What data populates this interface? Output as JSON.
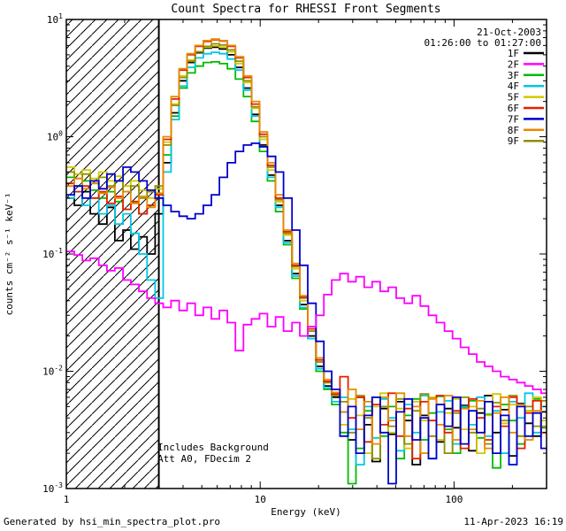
{
  "title": "Count Spectra for RHESSI Front Segments",
  "header": {
    "date": "21-Oct-2003",
    "time_range": "01:26:00 to 01:27:00"
  },
  "annotations": {
    "background": "Includes Background",
    "att": "Att A0, FDecim 2"
  },
  "footer": {
    "left": "Generated by hsi_min_spectra_plot.pro",
    "right": "11-Apr-2023 16:19"
  },
  "chart_data": {
    "type": "line",
    "title": "Count Spectra for RHESSI Front Segments",
    "xlabel": "Energy (keV)",
    "ylabel": "counts cm⁻² s⁻¹ keV⁻¹",
    "xscale": "log",
    "yscale": "log",
    "xlim": [
      1,
      300
    ],
    "ylim": [
      0.001,
      10
    ],
    "x_ticks": [
      1,
      10,
      100
    ],
    "x_minor_ticks": [
      2,
      3,
      4,
      5,
      6,
      7,
      8,
      9,
      20,
      30,
      40,
      50,
      60,
      70,
      80,
      90,
      200
    ],
    "y_ticks": [
      0.001,
      0.01,
      0.1,
      1,
      10
    ],
    "grid": false,
    "step": true,
    "legend_position": "top-right",
    "excluded_region": {
      "xmin": 1,
      "xmax": 3,
      "style": "hatched"
    },
    "draw_order": [
      "1F",
      "3F",
      "4F",
      "5F",
      "9F",
      "6F",
      "8F",
      "7F",
      "2F"
    ],
    "x": [
      1.0,
      1.1,
      1.21,
      1.33,
      1.47,
      1.62,
      1.78,
      1.96,
      2.15,
      2.37,
      2.61,
      2.87,
      3.16,
      3.47,
      3.82,
      4.2,
      4.62,
      5.09,
      5.6,
      6.16,
      6.77,
      7.45,
      8.2,
      9.02,
      9.93,
      10.9,
      12.0,
      13.2,
      14.6,
      16.0,
      17.6,
      19.4,
      21.3,
      23.4,
      25.8,
      28.4,
      31.2,
      34.4,
      37.8,
      41.6,
      45.8,
      50.3,
      55.4,
      60.9,
      67.0,
      73.8,
      81.1,
      89.3,
      98.2,
      108,
      119,
      131,
      144,
      158,
      174,
      192,
      211,
      232,
      255,
      281
    ],
    "series": [
      {
        "name": "1F",
        "color": "#000000",
        "values": [
          0.3,
          0.26,
          0.34,
          0.22,
          0.18,
          0.25,
          0.13,
          0.16,
          0.11,
          0.14,
          0.1,
          0.22,
          0.6,
          1.6,
          3.0,
          4.3,
          5.2,
          5.7,
          5.8,
          5.6,
          5.0,
          3.9,
          2.6,
          1.55,
          0.85,
          0.47,
          0.26,
          0.13,
          0.068,
          0.037,
          0.02,
          0.011,
          0.0075,
          0.006,
          0.0045,
          0.0026,
          0.006,
          0.0035,
          0.0017,
          0.0048,
          0.0029,
          0.0055,
          0.0038,
          0.0016,
          0.0042,
          0.006,
          0.0025,
          0.0048,
          0.0033,
          0.0051,
          0.0021,
          0.0044,
          0.0062,
          0.003,
          0.0047,
          0.0019,
          0.0053,
          0.0036,
          0.0028,
          0.0045
        ]
      },
      {
        "name": "2F",
        "color": "#ff00ff",
        "values": [
          0.105,
          0.098,
          0.088,
          0.092,
          0.08,
          0.072,
          0.076,
          0.06,
          0.055,
          0.048,
          0.042,
          0.038,
          0.035,
          0.04,
          0.033,
          0.038,
          0.03,
          0.035,
          0.028,
          0.033,
          0.026,
          0.015,
          0.025,
          0.028,
          0.031,
          0.024,
          0.029,
          0.022,
          0.026,
          0.02,
          0.024,
          0.03,
          0.045,
          0.06,
          0.068,
          0.058,
          0.064,
          0.052,
          0.058,
          0.048,
          0.052,
          0.042,
          0.038,
          0.044,
          0.036,
          0.03,
          0.026,
          0.022,
          0.019,
          0.016,
          0.014,
          0.012,
          0.011,
          0.01,
          0.009,
          0.0085,
          0.008,
          0.0075,
          0.007,
          0.0065
        ]
      },
      {
        "name": "3F",
        "color": "#00bb00",
        "values": [
          0.45,
          0.38,
          0.42,
          0.35,
          0.3,
          0.34,
          0.28,
          0.24,
          0.28,
          0.22,
          0.26,
          0.3,
          0.7,
          1.5,
          2.6,
          3.5,
          4.0,
          4.3,
          4.35,
          4.2,
          3.8,
          3.1,
          2.2,
          1.35,
          0.75,
          0.42,
          0.23,
          0.12,
          0.062,
          0.034,
          0.019,
          0.01,
          0.007,
          0.0052,
          0.003,
          0.0011,
          0.0022,
          0.0046,
          0.006,
          0.0028,
          0.005,
          0.0018,
          0.0042,
          0.0058,
          0.0026,
          0.0044,
          0.0061,
          0.0032,
          0.002,
          0.0049,
          0.0056,
          0.0027,
          0.0043,
          0.0015,
          0.0052,
          0.0038,
          0.0024,
          0.0046,
          0.0058,
          0.0033
        ]
      },
      {
        "name": "4F",
        "color": "#00c8e6",
        "values": [
          0.3,
          0.34,
          0.26,
          0.3,
          0.22,
          0.26,
          0.18,
          0.22,
          0.15,
          0.1,
          0.06,
          0.042,
          0.5,
          1.4,
          2.7,
          3.9,
          4.7,
          5.1,
          5.25,
          5.1,
          4.6,
          3.7,
          2.5,
          1.5,
          0.82,
          0.45,
          0.25,
          0.125,
          0.065,
          0.035,
          0.019,
          0.0105,
          0.0072,
          0.0055,
          0.006,
          0.0032,
          0.0016,
          0.005,
          0.0027,
          0.0058,
          0.004,
          0.0021,
          0.0052,
          0.003,
          0.0062,
          0.0018,
          0.0045,
          0.0056,
          0.0024,
          0.005,
          0.0035,
          0.006,
          0.0028,
          0.0046,
          0.002,
          0.0055,
          0.004,
          0.0065,
          0.003,
          0.005
        ]
      },
      {
        "name": "5F",
        "color": "#d2c800",
        "values": [
          0.55,
          0.48,
          0.52,
          0.44,
          0.5,
          0.42,
          0.46,
          0.38,
          0.42,
          0.35,
          0.3,
          0.36,
          0.9,
          1.9,
          3.3,
          4.5,
          5.3,
          5.8,
          5.95,
          5.8,
          5.3,
          4.2,
          2.9,
          1.75,
          0.95,
          0.52,
          0.28,
          0.145,
          0.075,
          0.04,
          0.022,
          0.012,
          0.008,
          0.0062,
          0.0035,
          0.0058,
          0.0042,
          0.002,
          0.005,
          0.0065,
          0.003,
          0.0048,
          0.0022,
          0.0055,
          0.0038,
          0.006,
          0.0026,
          0.0044,
          0.0058,
          0.0032,
          0.005,
          0.002,
          0.0042,
          0.0064,
          0.0036,
          0.0052,
          0.0028,
          0.0046,
          0.006,
          0.0038
        ]
      },
      {
        "name": "6F",
        "color": "#e62000",
        "values": [
          0.4,
          0.34,
          0.38,
          0.3,
          0.34,
          0.27,
          0.31,
          0.24,
          0.28,
          0.22,
          0.26,
          0.32,
          0.95,
          2.1,
          3.7,
          5.0,
          5.9,
          6.5,
          6.7,
          6.55,
          5.9,
          4.7,
          3.2,
          1.9,
          1.05,
          0.57,
          0.3,
          0.155,
          0.08,
          0.043,
          0.023,
          0.0125,
          0.0082,
          0.0064,
          0.009,
          0.004,
          0.006,
          0.0025,
          0.0052,
          0.0035,
          0.0065,
          0.0028,
          0.0048,
          0.0018,
          0.0055,
          0.0038,
          0.0062,
          0.003,
          0.0046,
          0.0022,
          0.0058,
          0.004,
          0.0026,
          0.005,
          0.0034,
          0.006,
          0.0022,
          0.0044,
          0.0056,
          0.003
        ]
      },
      {
        "name": "7F",
        "color": "#0000cc",
        "values": [
          0.32,
          0.38,
          0.3,
          0.42,
          0.36,
          0.48,
          0.42,
          0.55,
          0.5,
          0.42,
          0.35,
          0.3,
          0.26,
          0.23,
          0.21,
          0.2,
          0.22,
          0.26,
          0.32,
          0.45,
          0.6,
          0.75,
          0.85,
          0.88,
          0.82,
          0.68,
          0.5,
          0.3,
          0.16,
          0.08,
          0.038,
          0.018,
          0.01,
          0.007,
          0.0028,
          0.005,
          0.002,
          0.0042,
          0.006,
          0.003,
          0.0011,
          0.0045,
          0.0058,
          0.0026,
          0.004,
          0.0018,
          0.0052,
          0.0034,
          0.006,
          0.0024,
          0.0046,
          0.003,
          0.0055,
          0.002,
          0.0042,
          0.0016,
          0.005,
          0.0028,
          0.0044,
          0.0022
        ]
      },
      {
        "name": "8F",
        "color": "#e68a00",
        "values": [
          0.38,
          0.44,
          0.36,
          0.4,
          0.33,
          0.37,
          0.3,
          0.34,
          0.27,
          0.31,
          0.25,
          0.33,
          1.0,
          2.2,
          3.8,
          5.1,
          6.0,
          6.6,
          6.8,
          6.6,
          6.0,
          4.8,
          3.3,
          2.0,
          1.1,
          0.6,
          0.32,
          0.16,
          0.083,
          0.044,
          0.024,
          0.013,
          0.0085,
          0.0066,
          0.0045,
          0.007,
          0.0032,
          0.0055,
          0.0024,
          0.006,
          0.0038,
          0.0065,
          0.0028,
          0.005,
          0.002,
          0.0058,
          0.0035,
          0.0062,
          0.0026,
          0.0048,
          0.0032,
          0.0056,
          0.0022,
          0.0044,
          0.006,
          0.003,
          0.0052,
          0.0026,
          0.0046,
          0.0034
        ]
      },
      {
        "name": "9F",
        "color": "#8f8f00",
        "values": [
          0.5,
          0.44,
          0.48,
          0.4,
          0.45,
          0.38,
          0.42,
          0.34,
          0.38,
          0.3,
          0.34,
          0.38,
          0.85,
          1.85,
          3.2,
          4.4,
          5.3,
          5.9,
          6.2,
          6.05,
          5.5,
          4.4,
          3.0,
          1.8,
          1.0,
          0.55,
          0.29,
          0.15,
          0.078,
          0.042,
          0.022,
          0.012,
          0.008,
          0.0062,
          0.0055,
          0.003,
          0.0062,
          0.004,
          0.0018,
          0.005,
          0.0034,
          0.0058,
          0.0024,
          0.0046,
          0.0064,
          0.0028,
          0.0052,
          0.002,
          0.0044,
          0.006,
          0.003,
          0.0048,
          0.0024,
          0.0054,
          0.0038,
          0.0062,
          0.0028,
          0.005,
          0.0034,
          0.0056
        ]
      }
    ]
  }
}
